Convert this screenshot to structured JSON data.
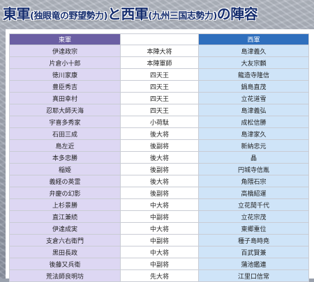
{
  "title": {
    "part1": "東軍",
    "part2": "(独眼竜の野望勢力)",
    "part3": "と西軍",
    "part4": "(九州三国志勢力)",
    "part5": "の陣容"
  },
  "table": {
    "headers": {
      "east": "東軍",
      "rank": "",
      "west": "西軍"
    },
    "rows": [
      {
        "east": "伊達政宗",
        "rank": "本陣大将",
        "west": "島津義久"
      },
      {
        "east": "片倉小十郎",
        "rank": "本陣軍師",
        "west": "大友宗麟"
      },
      {
        "east": "徳川家康",
        "rank": "四天王",
        "west": "龍造寺隆信"
      },
      {
        "east": "豊臣秀吉",
        "rank": "四天王",
        "west": "鍋島直茂"
      },
      {
        "east": "真田幸村",
        "rank": "四天王",
        "west": "立花道雪"
      },
      {
        "east": "忍耶大師天海",
        "rank": "四天王",
        "west": "島津義弘"
      },
      {
        "east": "宇喜多秀家",
        "rank": "小荷駄",
        "west": "成松信勝"
      },
      {
        "east": "石田三成",
        "rank": "後大将",
        "west": "島津家久"
      },
      {
        "east": "島左近",
        "rank": "後副将",
        "west": "新納忠元"
      },
      {
        "east": "本多忠勝",
        "rank": "後大将",
        "west": "晶"
      },
      {
        "east": "稲姫",
        "rank": "後副将",
        "west": "円城寺信胤"
      },
      {
        "east": "義経の英霊",
        "rank": "後大将",
        "west": "角隈石宗"
      },
      {
        "east": "弁慶の幻影",
        "rank": "後副将",
        "west": "高橋紹運"
      },
      {
        "east": "上杉景勝",
        "rank": "中大将",
        "west": "立花誾千代"
      },
      {
        "east": "直江兼続",
        "rank": "中副将",
        "west": "立花宗茂"
      },
      {
        "east": "伊達成実",
        "rank": "中大将",
        "west": "東郷重位"
      },
      {
        "east": "支倉六右衛門",
        "rank": "中副将",
        "west": "種子島時尭"
      },
      {
        "east": "黒田長政",
        "rank": "中大将",
        "west": "百武賢兼"
      },
      {
        "east": "後藤又兵衛",
        "rank": "中副将",
        "west": "蒲池鑑連"
      },
      {
        "east": "荒法師良明坊",
        "rank": "先大将",
        "west": "江里口信常"
      }
    ]
  }
}
